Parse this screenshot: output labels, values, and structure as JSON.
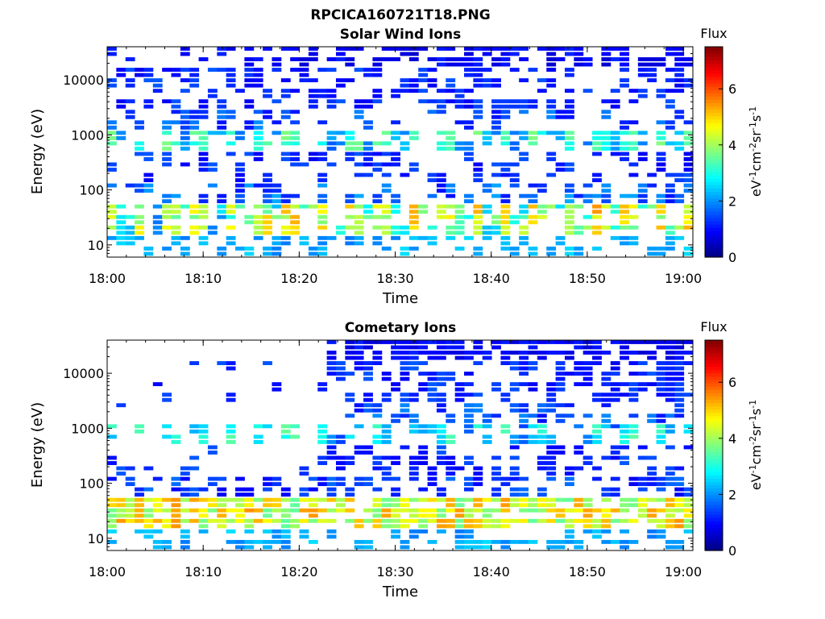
{
  "figure_title": "RPCICA160721T18.PNG",
  "chart_data": [
    {
      "type": "heatmap",
      "title": "Solar Wind Ions",
      "xlabel": "Time",
      "ylabel": "Energy (eV)",
      "x_tick_labels": [
        "18:00",
        "18:10",
        "18:20",
        "18:30",
        "18:40",
        "18:50",
        "19:00"
      ],
      "x_range": [
        "18:00",
        "19:01"
      ],
      "y_scale": "log",
      "y_range": [
        6,
        40000
      ],
      "y_tick_values": [
        10,
        100,
        1000,
        10000
      ],
      "y_tick_labels": [
        "10",
        "100",
        "1000",
        "10000"
      ],
      "colorbar": {
        "label": "Flux",
        "units": "eV-1cm-2sr-1s-1",
        "range": [
          0,
          7.5
        ],
        "tick_labels": [
          "0",
          "2",
          "4",
          "6"
        ],
        "tick_values": [
          0,
          2,
          4,
          6
        ],
        "colormap": "jet"
      },
      "x_columns": 64,
      "energy_bands": 20,
      "bands_approx": [
        {
          "energy_ev": [
            18000,
            40000
          ],
          "flux": [
            0.6,
            1.2
          ],
          "occupancy_before_1814": 0.15,
          "occupancy_after_1814": 0.75
        },
        {
          "energy_ev": [
            3000,
            18000
          ],
          "flux": [
            0.8,
            1.6
          ],
          "occupancy": 0.5
        },
        {
          "energy_ev": [
            1200,
            3000
          ],
          "flux": [
            1.0,
            2.0
          ],
          "occupancy": 0.35
        },
        {
          "energy_ev": [
            600,
            1200
          ],
          "flux": [
            2.8,
            3.8
          ],
          "occupancy": 0.9,
          "note": "periodic pulses, about 3 min period"
        },
        {
          "energy_ev": [
            150,
            600
          ],
          "flux": [
            0.8,
            1.6
          ],
          "occupancy": 0.4
        },
        {
          "energy_ev": [
            45,
            150
          ],
          "flux": [
            1.0,
            2.2
          ],
          "occupancy": 0.5
        },
        {
          "energy_ev": [
            18,
            45
          ],
          "flux": [
            3.0,
            5.0
          ],
          "occupancy": 0.95,
          "note": "periodic pulses, brighter after 18:24"
        },
        {
          "energy_ev": [
            6,
            18
          ],
          "flux": [
            1.8,
            2.6
          ],
          "occupancy": 0.55
        }
      ]
    },
    {
      "type": "heatmap",
      "title": "Cometary Ions",
      "xlabel": "Time",
      "ylabel": "Energy (eV)",
      "x_tick_labels": [
        "18:00",
        "18:10",
        "18:20",
        "18:30",
        "18:40",
        "18:50",
        "19:00"
      ],
      "x_range": [
        "18:00",
        "19:01"
      ],
      "y_scale": "log",
      "y_range": [
        6,
        40000
      ],
      "y_tick_values": [
        10,
        100,
        1000,
        10000
      ],
      "y_tick_labels": [
        "10",
        "100",
        "1000",
        "10000"
      ],
      "colorbar": {
        "label": "Flux",
        "units": "eV-1cm-2sr-1s-1",
        "range": [
          0,
          7.5
        ],
        "tick_labels": [
          "0",
          "2",
          "4",
          "6"
        ],
        "tick_values": [
          0,
          2,
          4,
          6
        ],
        "colormap": "jet"
      },
      "x_columns": 64,
      "energy_bands": 20,
      "bands_approx": [
        {
          "energy_ev": [
            18000,
            40000
          ],
          "flux": [
            0.6,
            1.2
          ],
          "occupancy_before_1823": 0.0,
          "occupancy_after_1823": 0.8
        },
        {
          "energy_ev": [
            3000,
            18000
          ],
          "flux": [
            0.8,
            1.6
          ],
          "occupancy_before_1823": 0.04,
          "occupancy_after_1823": 0.55
        },
        {
          "energy_ev": [
            1200,
            3000
          ],
          "flux": [
            1.0,
            2.0
          ],
          "occupancy_before_1823": 0.05,
          "occupancy_after_1823": 0.4
        },
        {
          "energy_ev": [
            600,
            1200
          ],
          "flux": [
            2.2,
            3.6
          ],
          "occupancy": 0.85,
          "note": "sparse pulses before 18:23, continuous after"
        },
        {
          "energy_ev": [
            150,
            600
          ],
          "flux": [
            0.8,
            1.6
          ],
          "occupancy_before_1823": 0.15,
          "occupancy_after_1823": 0.5
        },
        {
          "energy_ev": [
            45,
            150
          ],
          "flux": [
            0.8,
            1.8
          ],
          "occupancy": 0.55
        },
        {
          "energy_ev": [
            18,
            45
          ],
          "flux": [
            3.5,
            5.5
          ],
          "occupancy": 0.95,
          "note": "strongest signal before 18:23"
        },
        {
          "energy_ev": [
            6,
            18
          ],
          "flux": [
            1.8,
            2.6
          ],
          "occupancy": 0.55
        }
      ]
    }
  ]
}
